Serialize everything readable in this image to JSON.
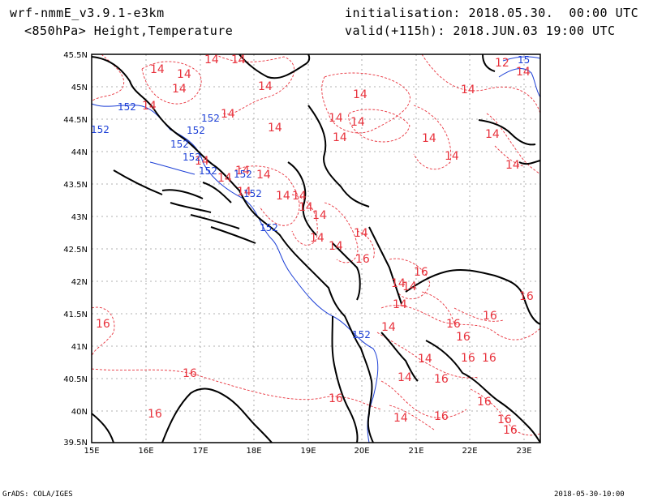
{
  "header": {
    "model": "wrf-nmmE_v3.9.1-e3km",
    "field": "<850hPa> Height,Temperature",
    "init": "initialisation: 2018.05.30.  00:00 UTC",
    "valid": "valid(+115h): 2018.JUN.03 19:00 UTC"
  },
  "footer": {
    "credit": "GrADS: COLA/IGES",
    "date": "2018-05-30-10:00"
  },
  "axes": {
    "x_ticks": [
      "15E",
      "16E",
      "17E",
      "18E",
      "19E",
      "20E",
      "21E",
      "22E",
      "23E"
    ],
    "y_ticks": [
      "45.5N",
      "45N",
      "44.5N",
      "44N",
      "43.5N",
      "43N",
      "42.5N",
      "42N",
      "41.5N",
      "41N",
      "40.5N",
      "40N",
      "39.5N"
    ]
  },
  "colors": {
    "temperature": "#e8323c",
    "height": "#1c3fd6",
    "coast": "#000000",
    "grid": "#888888"
  },
  "labels": {
    "temp": [
      "14",
      "14",
      "14",
      "14",
      "14",
      "14",
      "14",
      "14",
      "14",
      "14",
      "14",
      "14",
      "14",
      "14",
      "14",
      "14",
      "14",
      "14",
      "14",
      "14",
      "14",
      "14",
      "14",
      "14",
      "14",
      "14",
      "14",
      "14",
      "14",
      "12",
      "14",
      "14",
      "16",
      "16",
      "16",
      "16",
      "16",
      "16",
      "16",
      "16",
      "16",
      "16",
      "16",
      "16",
      "16",
      "16",
      "16",
      "14",
      "14",
      "14",
      "14",
      "14",
      "14",
      "16",
      "14",
      "16"
    ],
    "height": [
      "152",
      "152",
      "152",
      "152",
      "152",
      "152",
      "152",
      "152",
      "152",
      "152",
      "152",
      "15"
    ]
  }
}
